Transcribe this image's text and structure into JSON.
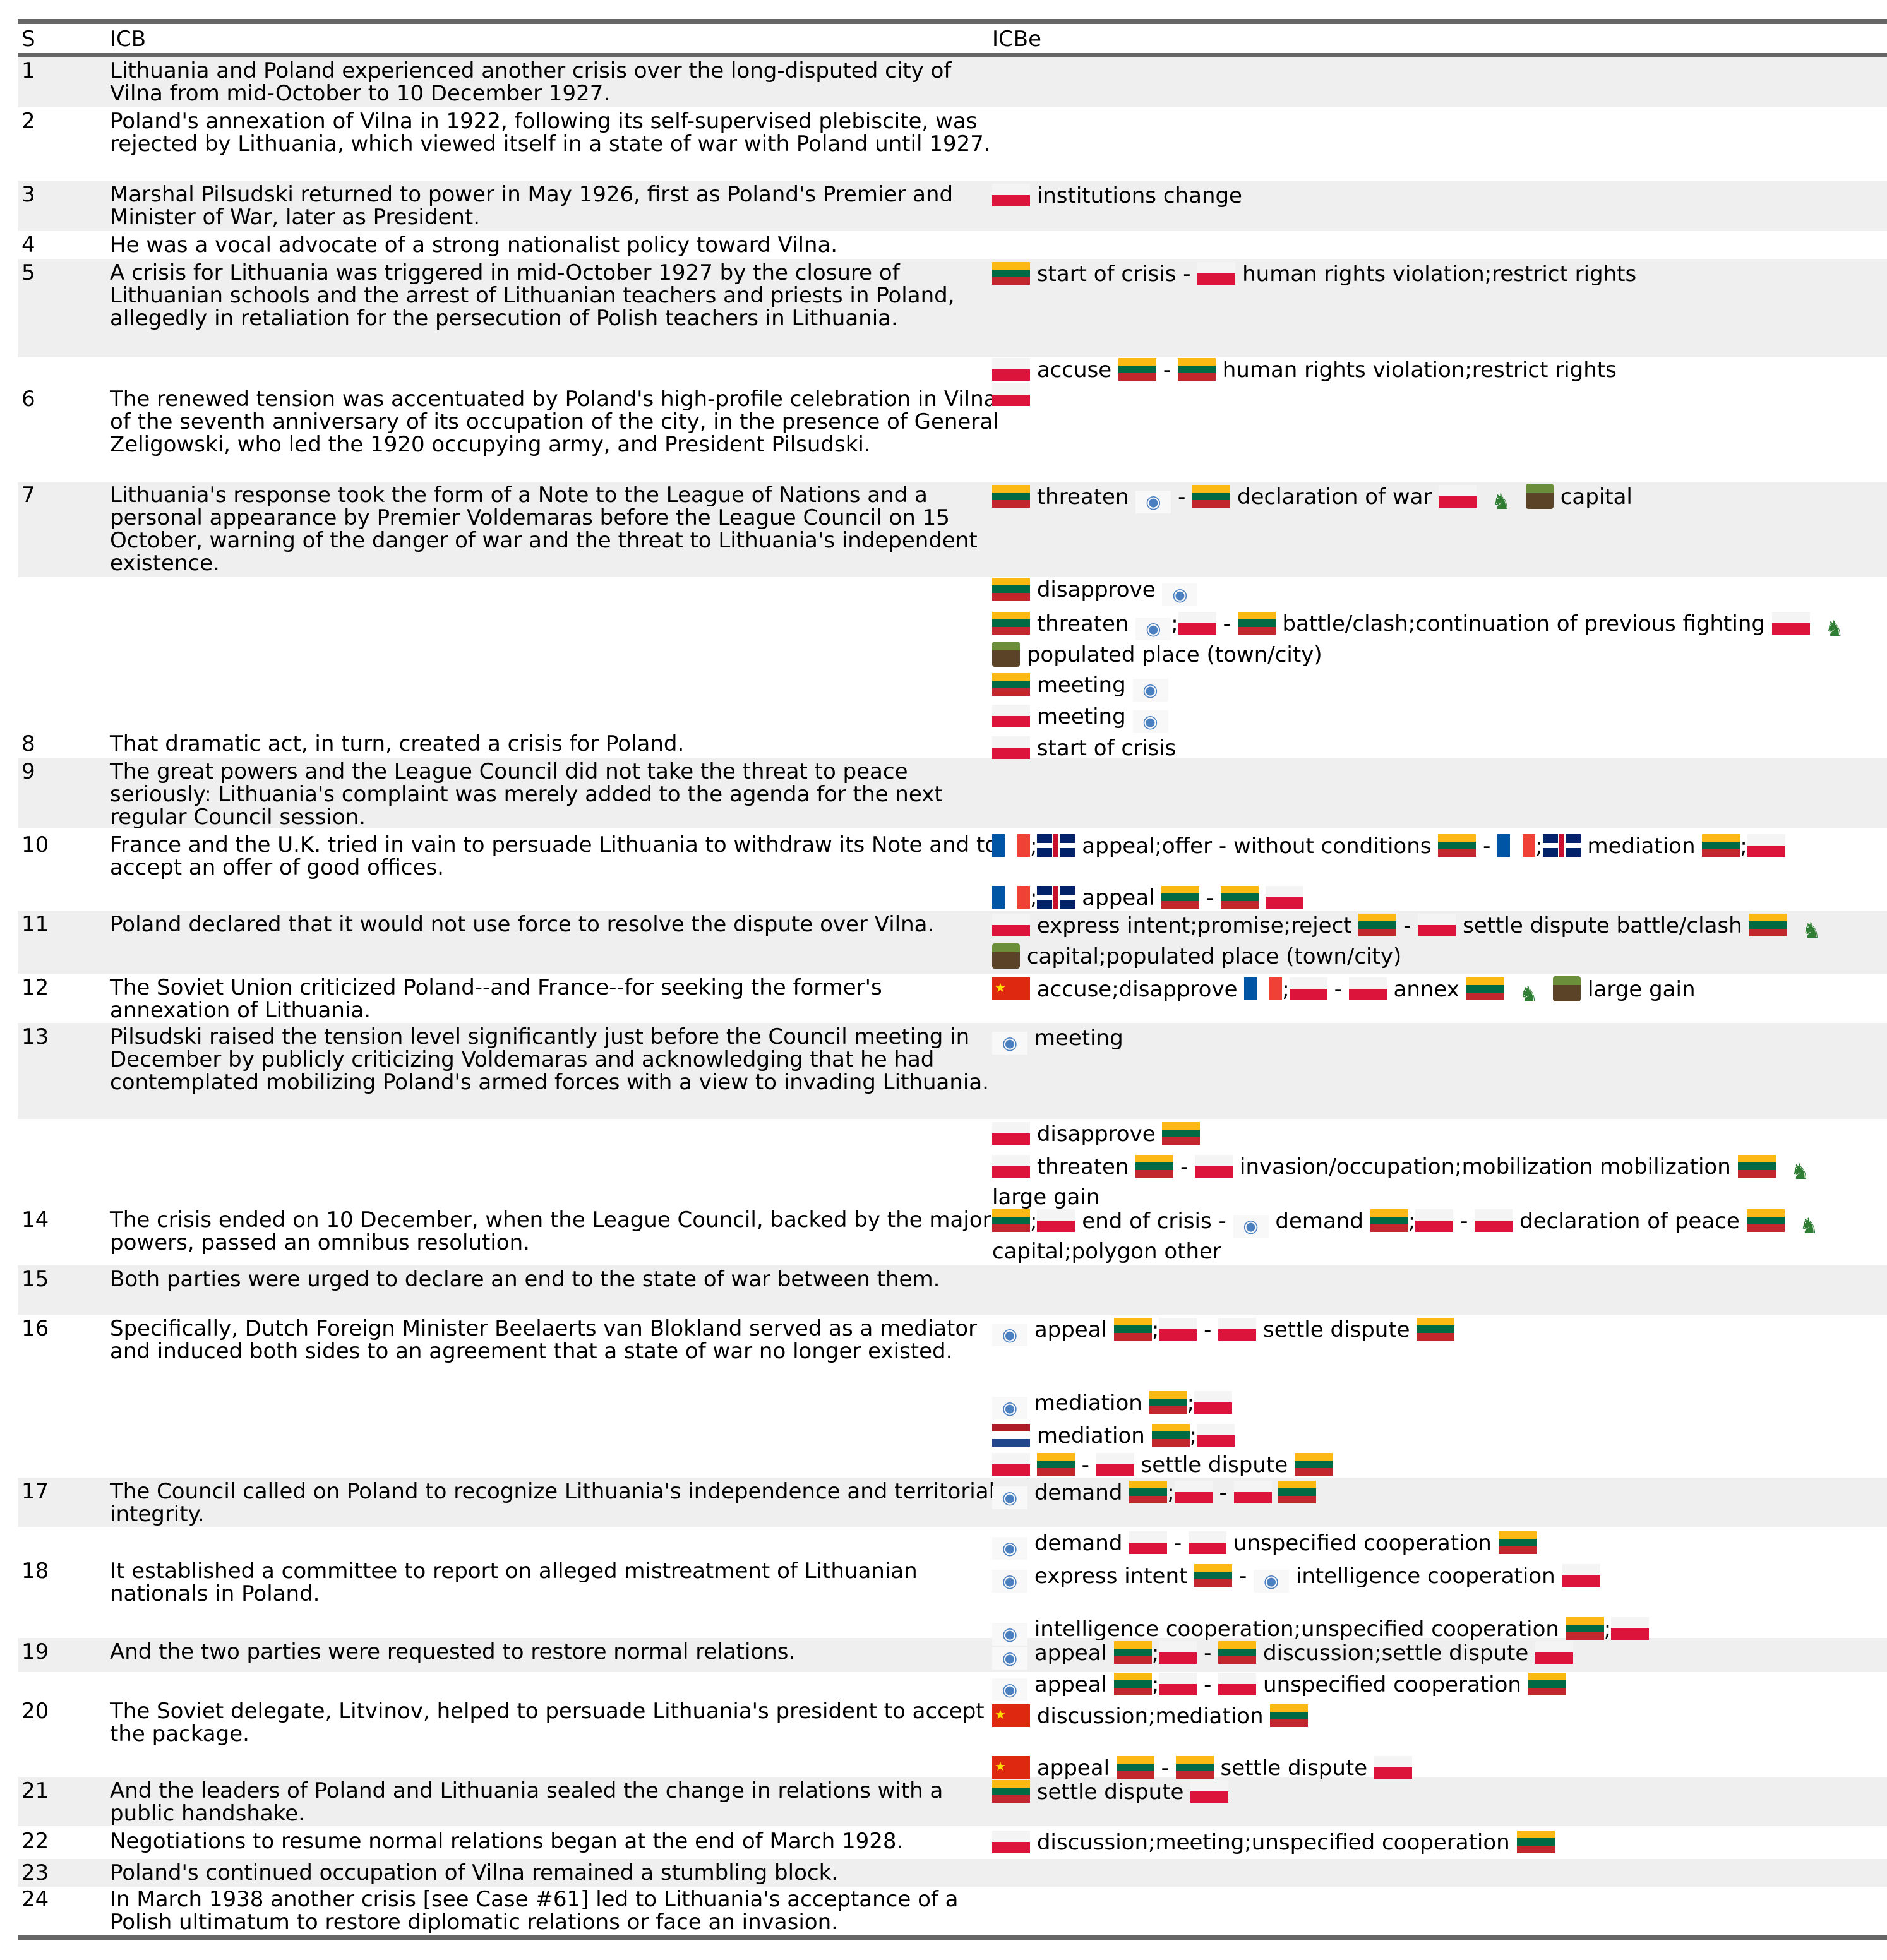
{
  "header": {
    "s": "S",
    "icb": "ICB",
    "icbe": "ICBe"
  },
  "icons": {
    "un": "un-emblem-icon",
    "army": "army-icon",
    "land": "territory-icon"
  },
  "rows": [
    {
      "s": "1",
      "icb": "Lithuania and Poland experienced another crisis over the long-disputed city of Vilna from mid-October to 10 December 1927."
    },
    {
      "s": "2",
      "icb": "Poland's annexation of Vilna in 1922, following its self-supervised plebiscite, was rejected by Lithuania, which viewed itself in a state of war with Poland until 1927."
    },
    {
      "s": "3",
      "icb": "Marshal Pilsudski returned to power in May 1926, first as Poland's Premier and Minister of War, later as President."
    },
    {
      "s": "4",
      "icb": "He was a vocal advocate of a strong nationalist policy toward Vilna."
    },
    {
      "s": "5",
      "icb": "A crisis for Lithuania was triggered in mid-October 1927 by the closure of Lithuanian schools and the arrest of Lithuanian teachers and priests in Poland, allegedly in retaliation for the persecution of Polish teachers in Lithuania."
    },
    {
      "s": "6",
      "icb": "The renewed tension was accentuated by Poland's high-profile celebration in Vilna of the seventh anniversary of its occupation of the city, in the presence of General Zeligowski, who led the 1920 occupying army, and President Pilsudski."
    },
    {
      "s": "7",
      "icb": "Lithuania's response took the form of a Note to the League of Nations and a personal appearance by Premier Voldemaras before the League Council on 15 October, warning of the danger of war and the threat to Lithuania's independent existence."
    },
    {
      "s": "8",
      "icb": "That dramatic act, in turn, created a crisis for Poland."
    },
    {
      "s": "9",
      "icb": "The great powers and the League Council did not take the threat to peace seriously: Lithuania's complaint was merely added to the agenda for the next regular Council session."
    },
    {
      "s": "10",
      "icb": "France and the U.K. tried in vain to persuade Lithuania to withdraw its Note and to accept an offer of good offices."
    },
    {
      "s": "11",
      "icb": "Poland declared that it would not use force to resolve the dispute over Vilna."
    },
    {
      "s": "12",
      "icb": "The Soviet Union criticized Poland--and France--for seeking the former's annexation of Lithuania."
    },
    {
      "s": "13",
      "icb": "Pilsudski raised the tension level significantly just before the Council meeting in December by publicly criticizing Voldemaras and acknowledging that he had contemplated mobilizing Poland's armed forces with a view to invading Lithuania."
    },
    {
      "s": "14",
      "icb": "The crisis ended on 10 December, when the League Council, backed by the major powers, passed an omnibus resolution."
    },
    {
      "s": "15",
      "icb": "Both parties were urged to declare an end to the state of war between them."
    },
    {
      "s": "16",
      "icb": "Specifically, Dutch Foreign Minister Beelaerts van Blokland served as a mediator and induced both sides to an agreement that a state of war no longer existed."
    },
    {
      "s": "17",
      "icb": "The Council called on Poland to recognize Lithuania's independence and territorial integrity."
    },
    {
      "s": "18",
      "icb": "It established a committee to report on alleged mistreatment of Lithuanian nationals in Poland."
    },
    {
      "s": "19",
      "icb": "And the two parties were requested to restore normal relations."
    },
    {
      "s": "20",
      "icb": "The Soviet delegate, Litvinov, helped to persuade Lithuania's president to accept the package."
    },
    {
      "s": "21",
      "icb": "And the leaders of Poland and Lithuania sealed the change in relations with a public handshake."
    },
    {
      "s": "22",
      "icb": "Negotiations to resume normal relations began at the end of March 1928."
    },
    {
      "s": "23",
      "icb": "Poland's continued occupation of Vilna remained a stumbling block."
    },
    {
      "s": "24",
      "icb": "In March 1938 another crisis [see Case #61] led to Lithuania's acceptance of a Polish ultimatum to restore diplomatic relations or face an invasion."
    }
  ],
  "events": {
    "e3": "institutions change",
    "e5a": "start of crisis -",
    "e5b": "human rights violation;restrict rights",
    "e6a": "accuse",
    "e6b": "-",
    "e6c": "human rights violation;restrict rights",
    "e7a": "threaten",
    "e7b": "-",
    "e7c": "declaration of war",
    "e7d": "capital",
    "e7e1": "disapprove",
    "e7f1": "threaten",
    "e7f2": ";",
    "e7f3": "-",
    "e7f4": "battle/clash;continuation of previous fighting",
    "e7f5": "populated place (town/city)",
    "e7g": "meeting",
    "e7h": "meeting",
    "e8": "start of crisis",
    "e10a1": ";",
    "e10a2": "appeal;offer - without conditions",
    "e10a3": "-",
    "e10a4": ";",
    "e10a5": "mediation",
    "e10a6": ";",
    "e10b1": ";",
    "e10b2": "appeal",
    "e10b3": "-",
    "e11a": "express intent;promise;reject",
    "e11b": "-",
    "e11c": "settle dispute battle/clash",
    "e11d": "capital;populated place (town/city)",
    "e12a": "accuse;disapprove",
    "e12b": ";",
    "e12c": "-",
    "e12d": "annex",
    "e12e": "large gain",
    "e13": "meeting",
    "e13b": "disapprove",
    "e13c1": "threaten",
    "e13c2": "-",
    "e13c3": "invasion/occupation;mobilization mobilization",
    "e13c4": "large gain",
    "e14a1": ";",
    "e14a2": "end of crisis -",
    "e14a3": "demand",
    "e14a4": ";",
    "e14a5": "-",
    "e14a6": "declaration of peace",
    "e14a7": "capital;polygon other",
    "e16a1": "appeal",
    "e16a2": ";",
    "e16a3": "-",
    "e16a4": "settle dispute",
    "e16b1": "mediation",
    "e16b2": ";",
    "e16c1": "mediation",
    "e16c2": ";",
    "e16d1": "-",
    "e16d2": "settle dispute",
    "e17a": "demand",
    "e17b": ";",
    "e17c": "-",
    "e18a1": "demand",
    "e18a2": "-",
    "e18a3": "unspecified cooperation",
    "e18b1": "express intent",
    "e18b2": "-",
    "e18b3": "intelligence cooperation",
    "e18c1": "intelligence cooperation;unspecified cooperation",
    "e18c2": ";",
    "e19a1": "appeal",
    "e19a2": ";",
    "e19a3": "-",
    "e19a4": "discussion;settle dispute",
    "e19b1": "appeal",
    "e19b2": ";",
    "e19b3": "-",
    "e19b4": "unspecified cooperation",
    "e20a": "discussion;mediation",
    "e20b1": "appeal",
    "e20b2": "-",
    "e20b3": "settle dispute",
    "e21": "settle dispute",
    "e22": "discussion;meeting;unspecified cooperation"
  }
}
